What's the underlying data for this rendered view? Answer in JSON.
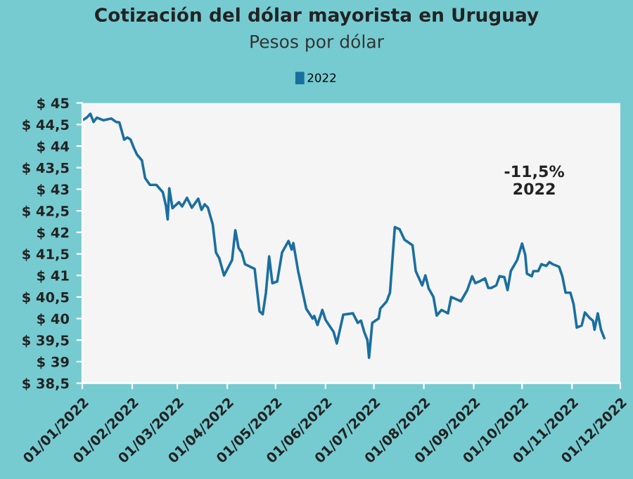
{
  "chart_data": {
    "type": "line",
    "title": "Cotización del dólar mayorista en Uruguay",
    "subtitle": "Pesos por dólar",
    "x": [
      "2022-01-02",
      "2022-01-04",
      "2022-01-06",
      "2022-01-08",
      "2022-01-10",
      "2022-01-14",
      "2022-01-19",
      "2022-01-22",
      "2022-01-24",
      "2022-01-27",
      "2022-01-29",
      "2022-01-31",
      "2022-02-02",
      "2022-02-04",
      "2022-02-07",
      "2022-02-09",
      "2022-02-12",
      "2022-02-16",
      "2022-02-20",
      "2022-02-22",
      "2022-02-23",
      "2022-02-24",
      "2022-02-26",
      "2022-03-02",
      "2022-03-04",
      "2022-03-07",
      "2022-03-10",
      "2022-03-14",
      "2022-03-16",
      "2022-03-18",
      "2022-03-20",
      "2022-03-23",
      "2022-03-25",
      "2022-03-27",
      "2022-03-30",
      "2022-04-04",
      "2022-04-06",
      "2022-04-08",
      "2022-04-10",
      "2022-04-12",
      "2022-04-18",
      "2022-04-21",
      "2022-04-23",
      "2022-04-25",
      "2022-04-27",
      "2022-04-29",
      "2022-05-02",
      "2022-05-05",
      "2022-05-09",
      "2022-05-11",
      "2022-05-12",
      "2022-05-15",
      "2022-05-20",
      "2022-05-24",
      "2022-05-25",
      "2022-05-27",
      "2022-05-30",
      "2022-06-01",
      "2022-06-04",
      "2022-06-06",
      "2022-06-08",
      "2022-06-12",
      "2022-06-18",
      "2022-06-21",
      "2022-06-23",
      "2022-06-25",
      "2022-06-27",
      "2022-06-28",
      "2022-06-30",
      "2022-07-02",
      "2022-07-04",
      "2022-07-05",
      "2022-07-09",
      "2022-07-11",
      "2022-07-12",
      "2022-07-14",
      "2022-07-17",
      "2022-07-20",
      "2022-07-25",
      "2022-07-27",
      "2022-07-31",
      "2022-08-02",
      "2022-08-04",
      "2022-08-07",
      "2022-08-09",
      "2022-08-12",
      "2022-08-16",
      "2022-08-18",
      "2022-08-21",
      "2022-08-24",
      "2022-08-28",
      "2022-08-31",
      "2022-09-02",
      "2022-09-05",
      "2022-09-08",
      "2022-09-10",
      "2022-09-12",
      "2022-09-15",
      "2022-09-17",
      "2022-09-20",
      "2022-09-22",
      "2022-09-24",
      "2022-09-28",
      "2022-10-01",
      "2022-10-03",
      "2022-10-04",
      "2022-10-07",
      "2022-10-08",
      "2022-10-11",
      "2022-10-13",
      "2022-10-16",
      "2022-10-18",
      "2022-10-20",
      "2022-10-24",
      "2022-10-26",
      "2022-10-28",
      "2022-10-31",
      "2022-11-02",
      "2022-11-04",
      "2022-11-07",
      "2022-11-09",
      "2022-11-12",
      "2022-11-14",
      "2022-11-15",
      "2022-11-17",
      "2022-11-19",
      "2022-11-21"
    ],
    "series": [
      {
        "name": "2022",
        "color": "#1a6fa0",
        "values": [
          44.62,
          44.67,
          44.75,
          44.56,
          44.66,
          44.6,
          44.64,
          44.56,
          44.55,
          44.15,
          44.2,
          44.15,
          43.96,
          43.8,
          43.67,
          43.26,
          43.1,
          43.1,
          42.93,
          42.6,
          42.3,
          43.02,
          42.56,
          42.7,
          42.6,
          42.8,
          42.57,
          42.78,
          42.52,
          42.65,
          42.57,
          42.18,
          41.53,
          41.4,
          41.0,
          41.36,
          42.05,
          41.64,
          41.53,
          41.26,
          41.15,
          40.17,
          40.1,
          40.6,
          41.44,
          40.82,
          40.86,
          41.53,
          41.8,
          41.6,
          41.75,
          41.1,
          40.23,
          40.0,
          40.06,
          39.85,
          40.2,
          39.97,
          39.8,
          39.69,
          39.42,
          40.09,
          40.12,
          39.9,
          39.95,
          39.69,
          39.5,
          39.09,
          39.9,
          39.95,
          40.0,
          40.23,
          40.4,
          40.6,
          41.1,
          42.12,
          42.07,
          41.83,
          41.7,
          41.1,
          40.77,
          41.0,
          40.7,
          40.5,
          40.07,
          40.2,
          40.12,
          40.5,
          40.45,
          40.4,
          40.66,
          40.98,
          40.82,
          40.87,
          40.93,
          40.71,
          40.71,
          40.77,
          40.98,
          40.96,
          40.66,
          41.1,
          41.36,
          41.74,
          41.47,
          41.04,
          40.98,
          41.1,
          41.1,
          41.26,
          41.22,
          41.31,
          41.26,
          41.2,
          40.98,
          40.6,
          40.6,
          40.33,
          39.79,
          39.84,
          40.14,
          40.01,
          39.95,
          39.74,
          40.12,
          39.74,
          39.55
        ]
      }
    ],
    "xlim": [
      "2022-01-01",
      "2022-12-01"
    ],
    "xticks": [
      {
        "value": "2022-01-01",
        "label": "01/01/2022"
      },
      {
        "value": "2022-02-01",
        "label": "01/02/2022"
      },
      {
        "value": "2022-03-01",
        "label": "01/03/2022"
      },
      {
        "value": "2022-04-01",
        "label": "01/04/2022"
      },
      {
        "value": "2022-05-01",
        "label": "01/05/2022"
      },
      {
        "value": "2022-06-01",
        "label": "01/06/2022"
      },
      {
        "value": "2022-07-01",
        "label": "01/07/2022"
      },
      {
        "value": "2022-08-01",
        "label": "01/08/2022"
      },
      {
        "value": "2022-09-01",
        "label": "01/09/2022"
      },
      {
        "value": "2022-10-01",
        "label": "01/10/2022"
      },
      {
        "value": "2022-11-01",
        "label": "01/11/2022"
      },
      {
        "value": "2022-12-01",
        "label": "01/12/2022"
      }
    ],
    "ylim": [
      38.5,
      45
    ],
    "yticks": [
      {
        "value": 38.5,
        "label": "$ 38,5"
      },
      {
        "value": 39,
        "label": "$ 39"
      },
      {
        "value": 39.5,
        "label": "$ 39,5"
      },
      {
        "value": 40,
        "label": "$ 40"
      },
      {
        "value": 40.5,
        "label": "$ 40,5"
      },
      {
        "value": 41,
        "label": "$ 41"
      },
      {
        "value": 41.5,
        "label": "$ 41,5"
      },
      {
        "value": 42,
        "label": "$ 42"
      },
      {
        "value": 42.5,
        "label": "$ 42,5"
      },
      {
        "value": 43,
        "label": "$ 43"
      },
      {
        "value": 43.5,
        "label": "$ 43,5"
      },
      {
        "value": 44,
        "label": "$ 44"
      },
      {
        "value": 44.5,
        "label": "$ 44,5"
      },
      {
        "value": 45,
        "label": "$ 45"
      }
    ],
    "annotations": [
      "-11,5%\n2022"
    ],
    "legend": "top",
    "grid": false,
    "marker": "none",
    "line_style": "solid"
  }
}
